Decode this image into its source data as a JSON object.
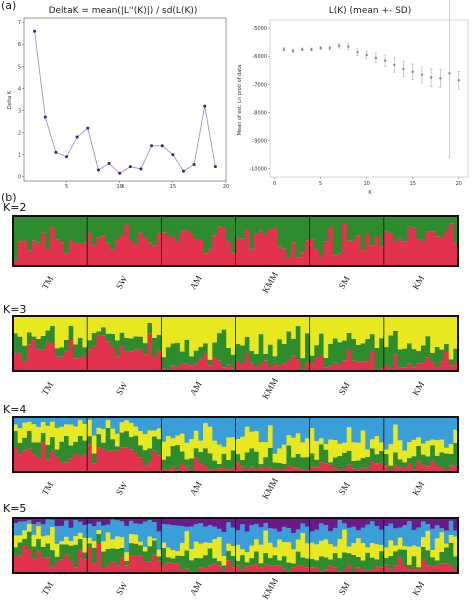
{
  "panel_labels": {
    "a": "(a)",
    "b": "(b)"
  },
  "chart_data": [
    {
      "type": "line",
      "title": "DeltaK = mean(|L''(K)|) / sd(L(K))",
      "xlabel": "K",
      "ylabel": "Delta K",
      "xlim": [
        1,
        20
      ],
      "ylim": [
        -0.2,
        7.2
      ],
      "xticks": [
        5,
        10,
        15,
        20
      ],
      "yticks": [
        0,
        1,
        2,
        3,
        4,
        5,
        6,
        7
      ],
      "x": [
        2,
        3,
        4,
        5,
        6,
        7,
        8,
        9,
        10,
        11,
        12,
        13,
        14,
        15,
        16,
        17,
        18,
        19
      ],
      "values": [
        6.6,
        2.7,
        1.1,
        0.9,
        1.8,
        2.2,
        0.3,
        0.6,
        0.15,
        0.45,
        0.35,
        1.4,
        1.4,
        1.0,
        0.25,
        0.55,
        3.2,
        0.45
      ],
      "grid": false,
      "color": "#1f2b9a"
    },
    {
      "type": "scatter",
      "title": "L(K) (mean +- SD)",
      "xlabel": "K",
      "ylabel": "Mean of est. Ln prob of data",
      "xlim": [
        -0.5,
        21
      ],
      "ylim": [
        -10300,
        -4700
      ],
      "xticks": [
        0,
        5,
        10,
        15,
        20
      ],
      "yticks": [
        -5000,
        -6000,
        -7000,
        -8000,
        -9000,
        -10000
      ],
      "x": [
        1,
        2,
        3,
        4,
        5,
        6,
        7,
        8,
        9,
        10,
        11,
        12,
        13,
        14,
        15,
        16,
        17,
        18,
        19,
        20
      ],
      "values": [
        -5750,
        -5800,
        -5750,
        -5750,
        -5700,
        -5700,
        -5620,
        -5650,
        -5850,
        -5950,
        -6050,
        -6150,
        -6300,
        -6450,
        -6550,
        -6650,
        -6750,
        -6780,
        -6600,
        -6850
      ],
      "sd": [
        60,
        60,
        50,
        50,
        60,
        70,
        80,
        100,
        120,
        140,
        180,
        200,
        260,
        280,
        280,
        300,
        320,
        320,
        3000,
        320
      ],
      "grid": false,
      "color": "#999999"
    },
    {
      "type": "bar",
      "subtype": "structure-barplot",
      "label": "K=2",
      "populations": [
        "TM",
        "SW",
        "AM",
        "KMM",
        "SM",
        "KM"
      ],
      "individuals_per_population": 16,
      "clusters": [
        {
          "color": "#e2334e",
          "mean_fraction": [
            0.45,
            0.5,
            0.55,
            0.55,
            0.5,
            0.55
          ]
        },
        {
          "color": "#2e8b2e",
          "mean_fraction": [
            0.55,
            0.5,
            0.45,
            0.45,
            0.5,
            0.45
          ]
        }
      ]
    },
    {
      "type": "bar",
      "subtype": "structure-barplot",
      "label": "K=3",
      "populations": [
        "TM",
        "SW",
        "AM",
        "KMM",
        "SM",
        "KM"
      ],
      "individuals_per_population": 16,
      "clusters": [
        {
          "color": "#e2334e",
          "mean_fraction": [
            0.45,
            0.4,
            0.1,
            0.12,
            0.15,
            0.15
          ]
        },
        {
          "color": "#2e8b2e",
          "mean_fraction": [
            0.2,
            0.25,
            0.35,
            0.35,
            0.35,
            0.3
          ]
        },
        {
          "color": "#e8e820",
          "mean_fraction": [
            0.35,
            0.35,
            0.55,
            0.53,
            0.5,
            0.55
          ]
        }
      ]
    },
    {
      "type": "bar",
      "subtype": "structure-barplot",
      "label": "K=4",
      "populations": [
        "TM",
        "SW",
        "AM",
        "KMM",
        "SM",
        "KM"
      ],
      "individuals_per_population": 16,
      "clusters": [
        {
          "color": "#e2334e",
          "mean_fraction": [
            0.35,
            0.35,
            0.08,
            0.08,
            0.1,
            0.1
          ]
        },
        {
          "color": "#2e8b2e",
          "mean_fraction": [
            0.25,
            0.25,
            0.22,
            0.2,
            0.2,
            0.2
          ]
        },
        {
          "color": "#e8e820",
          "mean_fraction": [
            0.25,
            0.2,
            0.3,
            0.3,
            0.3,
            0.3
          ]
        },
        {
          "color": "#3a9ed8",
          "mean_fraction": [
            0.15,
            0.2,
            0.4,
            0.42,
            0.4,
            0.4
          ]
        }
      ]
    },
    {
      "type": "bar",
      "subtype": "structure-barplot",
      "label": "K=5",
      "populations": [
        "TM",
        "SW",
        "AM",
        "KMM",
        "SM",
        "KM"
      ],
      "individuals_per_population": 16,
      "clusters": [
        {
          "color": "#e2334e",
          "mean_fraction": [
            0.3,
            0.3,
            0.1,
            0.1,
            0.1,
            0.12
          ]
        },
        {
          "color": "#2e8b2e",
          "mean_fraction": [
            0.2,
            0.2,
            0.2,
            0.2,
            0.2,
            0.2
          ]
        },
        {
          "color": "#e8e820",
          "mean_fraction": [
            0.2,
            0.15,
            0.25,
            0.25,
            0.25,
            0.25
          ]
        },
        {
          "color": "#3a9ed8",
          "mean_fraction": [
            0.2,
            0.25,
            0.3,
            0.3,
            0.3,
            0.28
          ]
        },
        {
          "color": "#6a1a8a",
          "mean_fraction": [
            0.1,
            0.1,
            0.15,
            0.15,
            0.15,
            0.15
          ]
        }
      ]
    }
  ]
}
